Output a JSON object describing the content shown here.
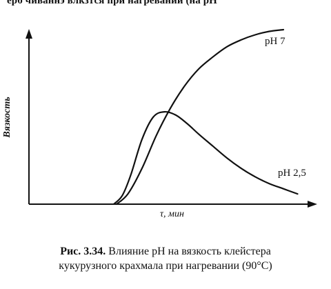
{
  "top_fragment": "ерб чиваннэ влкзтся при нагревании (на рН",
  "caption": {
    "number": "Рис. 3.34.",
    "line1_text": "Влияние pH на вязкость клейстера",
    "line2": "кукурузного крахмала при нагревании (90°С)"
  },
  "chart_data": {
    "type": "line",
    "title": "",
    "xlabel": "τ, мин",
    "ylabel": "Вязкость",
    "xlim": [
      0,
      10
    ],
    "ylim": [
      0,
      10
    ],
    "grid": false,
    "x_ticks": false,
    "y_ticks": false,
    "series": [
      {
        "name": "pH 7",
        "color": "#111111",
        "x": [
          3.1,
          3.5,
          4.0,
          4.5,
          5.0,
          5.5,
          6.0,
          6.5,
          7.0,
          7.5,
          8.0,
          8.5,
          9.0
        ],
        "y": [
          0.0,
          0.6,
          2.1,
          4.0,
          5.6,
          6.9,
          7.9,
          8.6,
          9.2,
          9.6,
          9.9,
          10.1,
          10.2
        ]
      },
      {
        "name": "pH 2,5",
        "color": "#111111",
        "x": [
          3.0,
          3.3,
          3.6,
          4.0,
          4.4,
          4.8,
          5.2,
          5.6,
          6.0,
          6.5,
          7.0,
          7.5,
          8.0,
          8.5,
          9.0,
          9.5
        ],
        "y": [
          0.0,
          0.5,
          1.7,
          3.8,
          5.1,
          5.4,
          5.2,
          4.7,
          4.1,
          3.4,
          2.7,
          2.1,
          1.6,
          1.2,
          0.9,
          0.6
        ]
      }
    ]
  }
}
